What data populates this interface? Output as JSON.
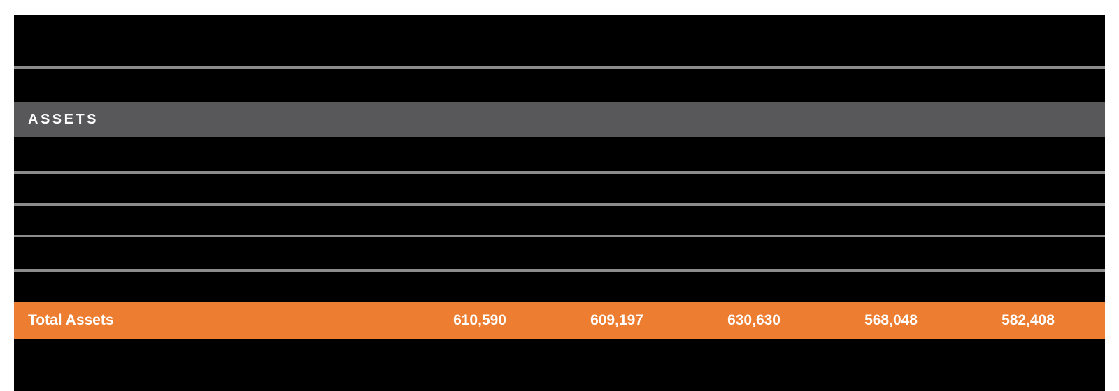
{
  "colors": {
    "page_background": "#FFFFFF",
    "panel_background": "#000000",
    "section_header_gray": "#58585A",
    "divider_gray": "#8C8C8C",
    "total_row_orange": "#ED7D31",
    "text_white": "#FFFFFF"
  },
  "statement": {
    "section_header": "ASSETS",
    "total_row": {
      "label": "Total Assets",
      "values": [
        "610,590",
        "609,197",
        "630,630",
        "568,048",
        "582,408"
      ]
    }
  }
}
